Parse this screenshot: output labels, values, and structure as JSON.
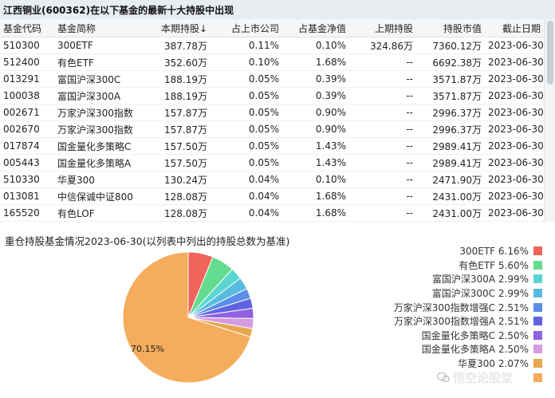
{
  "page_title": "江西铜业(600362)在以下基金的最新十大持股中出现",
  "table": {
    "headers": [
      "基金代码",
      "基金简称",
      "本期持股↓",
      "占上市公司",
      "占基金净值",
      "上期持股",
      "持股市值",
      "截止日期"
    ],
    "rows": [
      [
        "510300",
        "300ETF",
        "387.78万",
        "0.11%",
        "0.10%",
        "324.86万",
        "7360.12万",
        "2023-06-30"
      ],
      [
        "512400",
        "有色ETF",
        "352.60万",
        "0.10%",
        "1.68%",
        "--",
        "6692.38万",
        "2023-06-30"
      ],
      [
        "013291",
        "富国沪深300C",
        "188.19万",
        "0.05%",
        "0.39%",
        "--",
        "3571.87万",
        "2023-06-30"
      ],
      [
        "100038",
        "富国沪深300A",
        "188.19万",
        "0.05%",
        "0.39%",
        "--",
        "3571.87万",
        "2023-06-30"
      ],
      [
        "002671",
        "万家沪深300指数",
        "157.87万",
        "0.05%",
        "0.90%",
        "--",
        "2996.37万",
        "2023-06-30"
      ],
      [
        "002670",
        "万家沪深300指数",
        "157.87万",
        "0.05%",
        "0.90%",
        "--",
        "2996.37万",
        "2023-06-30"
      ],
      [
        "017874",
        "国金量化多策略C",
        "157.50万",
        "0.05%",
        "1.43%",
        "--",
        "2989.41万",
        "2023-06-30"
      ],
      [
        "005443",
        "国金量化多策略A",
        "157.50万",
        "0.05%",
        "1.43%",
        "--",
        "2989.41万",
        "2023-06-30"
      ],
      [
        "510330",
        "华夏300",
        "130.24万",
        "0.04%",
        "0.10%",
        "--",
        "2471.90万",
        "2023-06-30"
      ],
      [
        "013081",
        "中信保诚中证800",
        "128.08万",
        "0.04%",
        "1.68%",
        "--",
        "2431.00万",
        "2023-06-30"
      ],
      [
        "165520",
        "有色LOF",
        "128.08万",
        "0.04%",
        "1.68%",
        "--",
        "2431.00万",
        "2023-06-30"
      ],
      [
        "",
        "",
        "",
        "",
        "",
        "",
        "",
        ""
      ]
    ]
  },
  "chart_title": "重仓持股基金情况2023-06-30(以列表中列出的持股总数为基准)",
  "chart_data": {
    "type": "pie",
    "title": "重仓持股基金情况2023-06-30(以列表中列出的持股总数为基准)",
    "slices": [
      {
        "label": "300ETF",
        "value": 6.16,
        "color": "#f0645a"
      },
      {
        "label": "有色ETF",
        "value": 5.6,
        "color": "#63dc8f"
      },
      {
        "label": "富国沪深300A",
        "value": 2.99,
        "color": "#5bd6d0"
      },
      {
        "label": "富国沪深300C",
        "value": 2.99,
        "color": "#57bce0"
      },
      {
        "label": "万家沪深300指数增强C",
        "value": 2.51,
        "color": "#5a8ee8"
      },
      {
        "label": "万家沪深300指数增强A",
        "value": 2.51,
        "color": "#5f63e0"
      },
      {
        "label": "国金量化多策略C",
        "value": 2.5,
        "color": "#8e62e0"
      },
      {
        "label": "国金量化多策略A",
        "value": 2.5,
        "color": "#d59ae0"
      },
      {
        "label": "华夏300",
        "value": 2.07,
        "color": "#e5a84e"
      },
      {
        "label": "",
        "value": 70.15,
        "color": "#f5ac5c"
      }
    ],
    "largest_slice_label": "70.15%"
  },
  "legend": [
    {
      "text": "300ETF 6.16%",
      "color": "#f0645a"
    },
    {
      "text": "有色ETF 5.60%",
      "color": "#63dc8f"
    },
    {
      "text": "富国沪深300A 2.99%",
      "color": "#5bd6d0"
    },
    {
      "text": "富国沪深300C 2.99%",
      "color": "#57bce0"
    },
    {
      "text": "万家沪深300指数增强C 2.51%",
      "color": "#5a8ee8"
    },
    {
      "text": "万家沪深300指数增强A 2.51%",
      "color": "#5f63e0"
    },
    {
      "text": "国金量化多策略C 2.50%",
      "color": "#8e62e0"
    },
    {
      "text": "国金量化多策略A 2.50%",
      "color": "#d59ae0"
    },
    {
      "text": "华夏300 2.07%",
      "color": "#e5a84e"
    },
    {
      "text": "",
      "color": "#f5ac5c"
    }
  ],
  "watermark": "悟空论股堂"
}
